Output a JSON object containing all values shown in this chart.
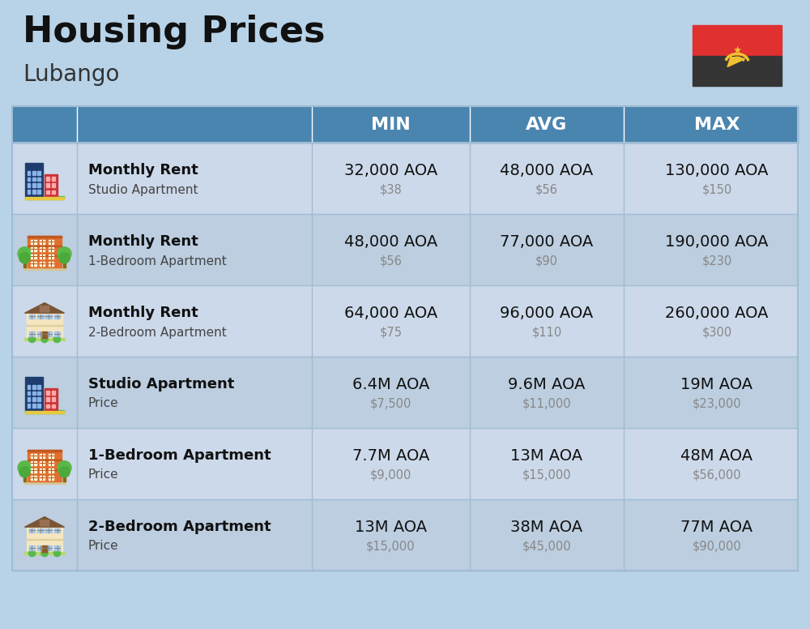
{
  "title": "Housing Prices",
  "subtitle": "Lubango",
  "bg_color": "#b8d3e8",
  "header_bg": "#4a85b0",
  "header_text_color": "#ffffff",
  "row_colors": [
    "#ccd9ea",
    "#bccee0"
  ],
  "divider_color": "#a0bcd4",
  "columns": [
    "MIN",
    "AVG",
    "MAX"
  ],
  "rows": [
    {
      "label_bold": "Monthly Rent",
      "label_sub": "Studio Apartment",
      "icon_type": "blue_office",
      "min_main": "32,000 AOA",
      "min_sub": "$38",
      "avg_main": "48,000 AOA",
      "avg_sub": "$56",
      "max_main": "130,000 AOA",
      "max_sub": "$150"
    },
    {
      "label_bold": "Monthly Rent",
      "label_sub": "1-Bedroom Apartment",
      "icon_type": "orange_apt",
      "min_main": "48,000 AOA",
      "min_sub": "$56",
      "avg_main": "77,000 AOA",
      "avg_sub": "$90",
      "max_main": "190,000 AOA",
      "max_sub": "$230"
    },
    {
      "label_bold": "Monthly Rent",
      "label_sub": "2-Bedroom Apartment",
      "icon_type": "beige_house",
      "min_main": "64,000 AOA",
      "min_sub": "$75",
      "avg_main": "96,000 AOA",
      "avg_sub": "$110",
      "max_main": "260,000 AOA",
      "max_sub": "$300"
    },
    {
      "label_bold": "Studio Apartment",
      "label_sub": "Price",
      "icon_type": "blue_office",
      "min_main": "6.4M AOA",
      "min_sub": "$7,500",
      "avg_main": "9.6M AOA",
      "avg_sub": "$11,000",
      "max_main": "19M AOA",
      "max_sub": "$23,000"
    },
    {
      "label_bold": "1-Bedroom Apartment",
      "label_sub": "Price",
      "icon_type": "orange_apt",
      "min_main": "7.7M AOA",
      "min_sub": "$9,000",
      "avg_main": "13M AOA",
      "avg_sub": "$15,000",
      "max_main": "48M AOA",
      "max_sub": "$56,000"
    },
    {
      "label_bold": "2-Bedroom Apartment",
      "label_sub": "Price",
      "icon_type": "beige_house",
      "min_main": "13M AOA",
      "min_sub": "$15,000",
      "avg_main": "38M AOA",
      "avg_sub": "$45,000",
      "max_main": "77M AOA",
      "max_sub": "$90,000"
    }
  ]
}
